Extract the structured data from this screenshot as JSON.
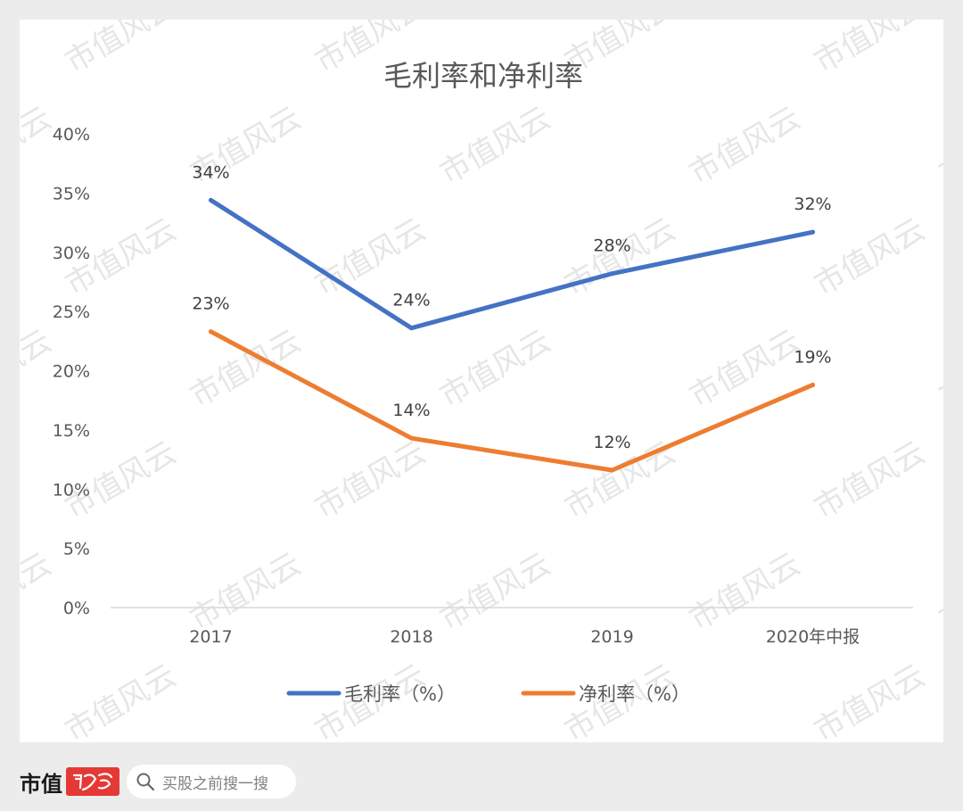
{
  "chart_data": {
    "type": "line",
    "title": "毛利率和净利率",
    "categories": [
      "2017",
      "2018",
      "2019",
      "2020年中报"
    ],
    "y_ticks": [
      "0%",
      "5%",
      "10%",
      "15%",
      "20%",
      "25%",
      "30%",
      "35%",
      "40%"
    ],
    "ylim": [
      0,
      40
    ],
    "grid": false,
    "legend_position": "bottom",
    "series": [
      {
        "name": "毛利率（%）",
        "color": "#4472c4",
        "values": [
          34.4,
          23.6,
          28.2,
          31.7
        ],
        "labels": [
          "34%",
          "24%",
          "28%",
          "32%"
        ]
      },
      {
        "name": "净利率（%）",
        "color": "#ed7d31",
        "values": [
          23.3,
          14.3,
          11.6,
          18.8
        ],
        "labels": [
          "23%",
          "14%",
          "12%",
          "19%"
        ]
      }
    ]
  },
  "watermark": "市值风云",
  "footer": {
    "brand": "市值",
    "search_placeholder": "买股之前搜一搜"
  }
}
